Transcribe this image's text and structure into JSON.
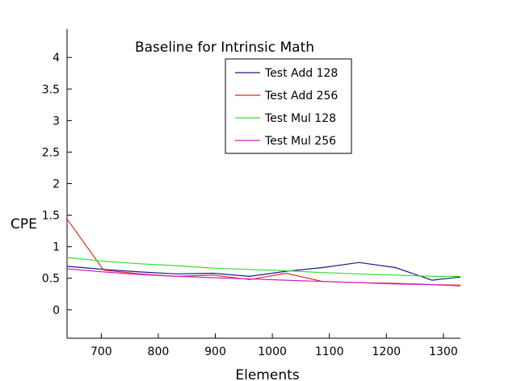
{
  "chart_data": {
    "type": "line",
    "title": "Baseline for Intrinsic Math",
    "xlabel": "Elements",
    "ylabel": "CPE",
    "xlim": [
      640,
      1330
    ],
    "ylim": [
      -0.45,
      4.45
    ],
    "x_ticks": [
      700,
      800,
      900,
      1000,
      1100,
      1200,
      1300
    ],
    "y_ticks": [
      0,
      0.5,
      1,
      1.5,
      2,
      2.5,
      3,
      3.5,
      4
    ],
    "x_tick_labels": [
      "700",
      "800",
      "900",
      "1000",
      "1100",
      "1200",
      "1300"
    ],
    "y_tick_labels": [
      "0",
      "0.5",
      "1",
      "1.5",
      "2",
      "2.5",
      "3",
      "3.5",
      "4"
    ],
    "grid": false,
    "legend_position": "top-right",
    "series": [
      {
        "name": "Test Add 128",
        "color": "#1a1a8c",
        "x": [
          640,
          704,
          768,
          832,
          896,
          960,
          1024,
          1088,
          1152,
          1216,
          1280,
          1330
        ],
        "y": [
          0.69,
          0.64,
          0.6,
          0.57,
          0.58,
          0.53,
          0.61,
          0.67,
          0.75,
          0.67,
          0.47,
          0.52
        ]
      },
      {
        "name": "Test Add 256",
        "color": "#e0281e",
        "x": [
          640,
          704,
          768,
          832,
          896,
          960,
          1024,
          1088,
          1152,
          1216,
          1280,
          1330
        ],
        "y": [
          1.44,
          0.63,
          0.57,
          0.53,
          0.55,
          0.48,
          0.58,
          0.45,
          0.43,
          0.42,
          0.4,
          0.39
        ]
      },
      {
        "name": "Test Mul 128",
        "color": "#33dd33",
        "x": [
          640,
          704,
          768,
          832,
          896,
          960,
          1024,
          1088,
          1152,
          1216,
          1280,
          1330
        ],
        "y": [
          0.83,
          0.77,
          0.73,
          0.7,
          0.66,
          0.64,
          0.62,
          0.59,
          0.57,
          0.55,
          0.53,
          0.53
        ]
      },
      {
        "name": "Test Mul 256",
        "color": "#cc22cc",
        "x": [
          640,
          704,
          768,
          832,
          896,
          960,
          1024,
          1088,
          1152,
          1216,
          1280,
          1330
        ],
        "y": [
          0.65,
          0.6,
          0.56,
          0.53,
          0.51,
          0.49,
          0.47,
          0.45,
          0.43,
          0.41,
          0.4,
          0.38
        ]
      }
    ]
  }
}
